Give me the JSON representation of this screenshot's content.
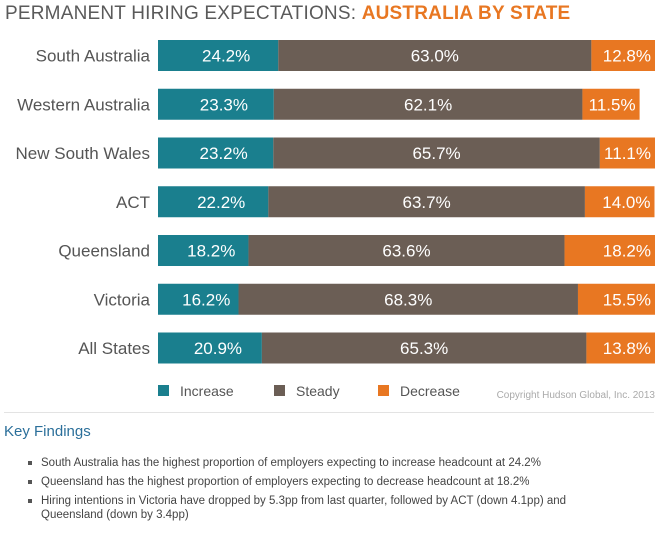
{
  "title": {
    "prefix": "PERMANENT HIRING EXPECTATIONS: ",
    "highlight": "AUSTRALIA BY STATE"
  },
  "chart_data": {
    "type": "bar",
    "orientation": "horizontal",
    "stacked": true,
    "categories": [
      "South Australia",
      "Western Australia",
      "New South Wales",
      "ACT",
      "Queensland",
      "Victoria",
      "All States"
    ],
    "series": [
      {
        "name": "Increase",
        "color": "#1a7f8e",
        "values": [
          24.2,
          23.3,
          23.2,
          22.2,
          18.2,
          16.2,
          20.9
        ]
      },
      {
        "name": "Steady",
        "color": "#6b5e55",
        "values": [
          63.0,
          62.1,
          65.7,
          63.7,
          63.6,
          68.3,
          65.3
        ]
      },
      {
        "name": "Decrease",
        "color": "#e87722",
        "values": [
          12.8,
          11.5,
          11.1,
          14.0,
          18.2,
          15.5,
          13.8
        ]
      }
    ],
    "labels": [
      [
        "24.2%",
        "63.0%",
        "12.8%"
      ],
      [
        "23.3%",
        "62.1%",
        "11.5%"
      ],
      [
        "23.2%",
        "65.7%",
        "11.1%"
      ],
      [
        "22.2%",
        "63.7%",
        "14.0%"
      ],
      [
        "18.2%",
        "63.6%",
        "18.2%"
      ],
      [
        "16.2%",
        "68.3%",
        "15.5%"
      ],
      [
        "20.9%",
        "65.3%",
        "13.8%"
      ]
    ],
    "legend_position": "bottom",
    "grid": false,
    "xlim": [
      0,
      100
    ]
  },
  "copyright": "Copyright Hudson Global, Inc. 2013",
  "key_findings": {
    "title": "Key Findings",
    "items": [
      "South Australia has the highest proportion of employers expecting to increase headcount at 24.2%",
      "Queensland has the highest proportion of employers expecting to decrease headcount at 18.2%",
      "Hiring intentions in Victoria have dropped by 5.3pp from last quarter, followed by ACT (down 4.1pp) and Queensland (down by 3.4pp)"
    ]
  }
}
